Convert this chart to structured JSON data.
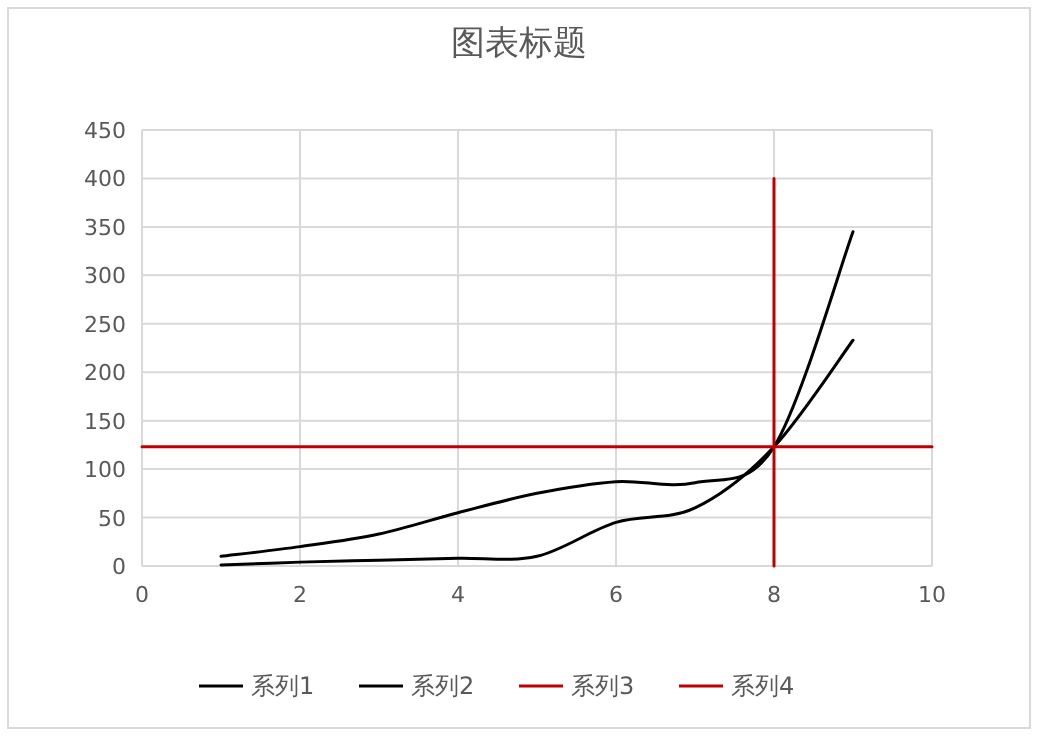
{
  "chart_data": {
    "type": "line",
    "title": "图表标题",
    "x": [
      1,
      2,
      3,
      4,
      5,
      6,
      7,
      8,
      9
    ],
    "series": [
      {
        "name": "系列1",
        "color": "#000000",
        "values": [
          10,
          20,
          33,
          55,
          75,
          87,
          86,
          123,
          345
        ]
      },
      {
        "name": "系列2",
        "color": "#000000",
        "values": [
          1,
          4,
          6,
          8,
          10,
          45,
          60,
          123,
          233
        ]
      },
      {
        "name": "系列3",
        "color": "#c00000",
        "x": [
          0,
          10
        ],
        "values": [
          123,
          123
        ]
      },
      {
        "name": "系列4",
        "color": "#c00000",
        "x": [
          8,
          8
        ],
        "values": [
          0,
          400
        ]
      }
    ],
    "xlim": [
      0,
      10
    ],
    "xticks": [
      0,
      2,
      4,
      6,
      8,
      10
    ],
    "ylim": [
      0,
      450
    ],
    "yticks": [
      0,
      50,
      100,
      150,
      200,
      250,
      300,
      350,
      400,
      450
    ],
    "grid": true,
    "legend": "bottom",
    "marker": "none",
    "line_style": "solid"
  }
}
